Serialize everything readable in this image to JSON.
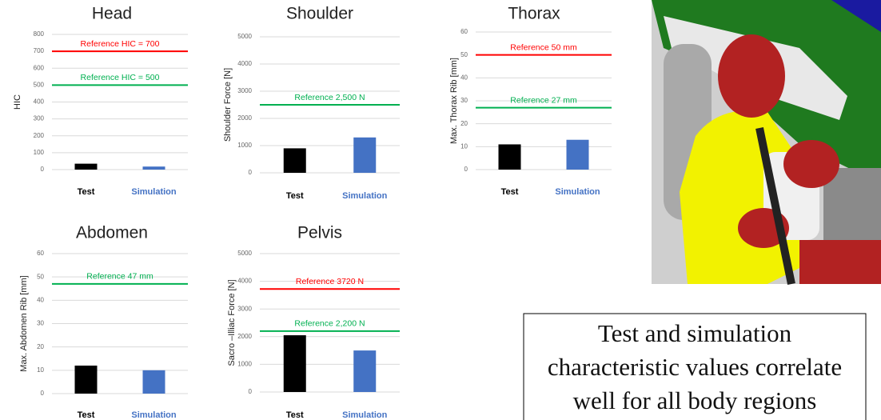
{
  "chart_data": [
    {
      "type": "bar",
      "title": "Head",
      "y_label": "HIC",
      "categories": [
        "Test",
        "Simulation"
      ],
      "values": [
        35,
        18
      ],
      "colors": [
        "#000000",
        "#4472c4"
      ],
      "ylim": [
        0,
        800
      ],
      "yticks": [
        0,
        100,
        200,
        300,
        400,
        500,
        600,
        700,
        800
      ],
      "grid": true,
      "reference_lines": [
        {
          "value": 700,
          "label": "Reference HIC = 700",
          "color": "#ff0000"
        },
        {
          "value": 500,
          "label": "Reference HIC = 500",
          "color": "#00b050"
        }
      ]
    },
    {
      "type": "bar",
      "title": "Shoulder",
      "y_label": "Shoulder Force [N]",
      "categories": [
        "Test",
        "Simulation"
      ],
      "values": [
        900,
        1300
      ],
      "colors": [
        "#000000",
        "#4472c4"
      ],
      "ylim": [
        0,
        5000
      ],
      "yticks": [
        0,
        1000,
        2000,
        3000,
        4000,
        5000
      ],
      "grid": true,
      "reference_lines": [
        {
          "value": 2500,
          "label": "Reference 2,500 N",
          "color": "#00b050"
        }
      ]
    },
    {
      "type": "bar",
      "title": "Thorax",
      "y_label": "Max. Thorax Rib  [mm]",
      "categories": [
        "Test",
        "Simulation"
      ],
      "values": [
        11,
        13
      ],
      "colors": [
        "#000000",
        "#4472c4"
      ],
      "ylim": [
        0,
        60
      ],
      "yticks": [
        0,
        10,
        20,
        30,
        40,
        50,
        60
      ],
      "grid": true,
      "reference_lines": [
        {
          "value": 50,
          "label": "Reference 50 mm",
          "color": "#ff0000"
        },
        {
          "value": 27,
          "label": "Reference 27 mm",
          "color": "#00b050"
        }
      ]
    },
    {
      "type": "bar",
      "title": "Abdomen",
      "y_label": "Max. Abdomen Rib  [mm]",
      "categories": [
        "Test",
        "Simulation"
      ],
      "values": [
        12,
        10
      ],
      "colors": [
        "#000000",
        "#4472c4"
      ],
      "ylim": [
        0,
        60
      ],
      "yticks": [
        0,
        10,
        20,
        30,
        40,
        50,
        60
      ],
      "grid": true,
      "reference_lines": [
        {
          "value": 47,
          "label": "Reference 47 mm",
          "color": "#00b050"
        }
      ]
    },
    {
      "type": "bar",
      "title": "Pelvis",
      "y_label": "Sacro –Illiac Force [N]",
      "categories": [
        "Test",
        "Simulation"
      ],
      "values": [
        2050,
        1500
      ],
      "colors": [
        "#000000",
        "#4472c4"
      ],
      "ylim": [
        0,
        5000
      ],
      "yticks": [
        0,
        1000,
        2000,
        3000,
        4000,
        5000
      ],
      "grid": true,
      "reference_lines": [
        {
          "value": 3720,
          "label": "Reference 3720 N",
          "color": "#ff0000"
        },
        {
          "value": 2200,
          "label": "Reference 2,200 N",
          "color": "#00b050"
        }
      ]
    }
  ],
  "caption": [
    "Test and simulation",
    "characteristic values correlate",
    "well for all body regions"
  ]
}
